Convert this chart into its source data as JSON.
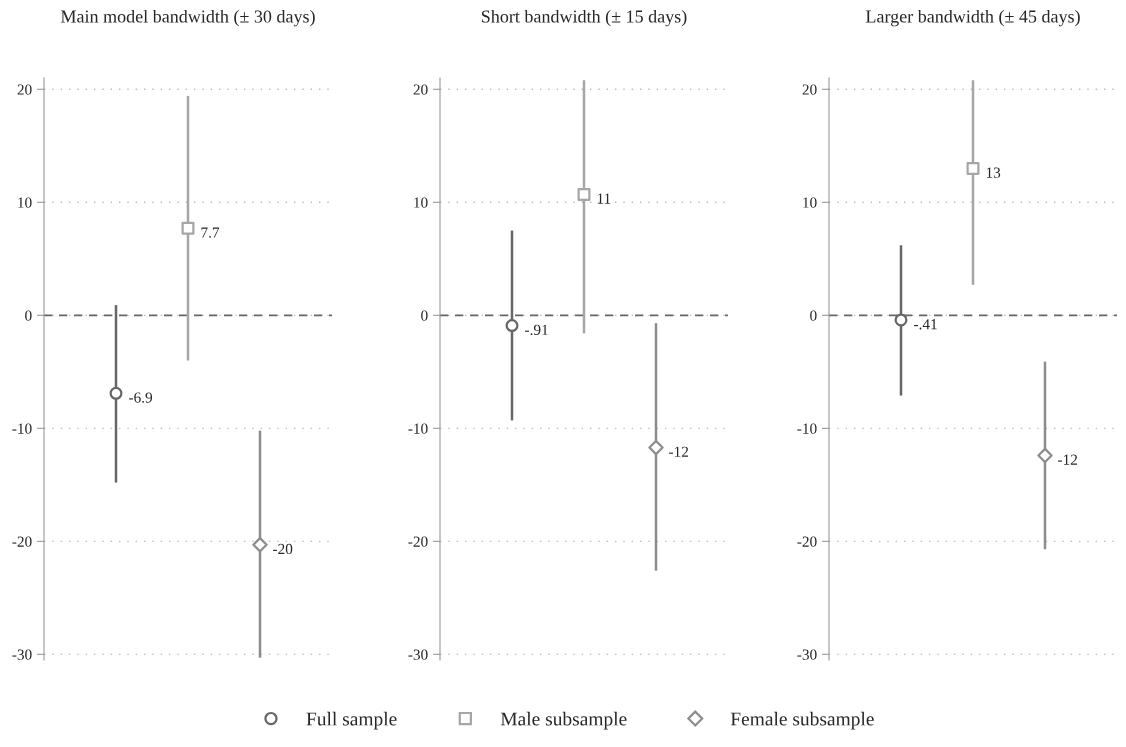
{
  "chart_data": [
    {
      "type": "scatter",
      "title": "Main model bandwidth (± 30 days)",
      "categories": [
        null,
        null,
        null
      ],
      "ylim": [
        -30.5,
        21
      ],
      "yticks": [
        -30,
        -20,
        -10,
        0,
        10,
        20
      ],
      "grid": "y",
      "tick_labels": "y",
      "legend": "bottom",
      "ref_lines": [
        {
          "axis": "y",
          "value": 0,
          "color": "#666666",
          "line_style": "dashed"
        }
      ],
      "series": [
        {
          "name": "Full sample",
          "color": "#666666",
          "marker": "circle",
          "values": [
            -6.9,
            null,
            null
          ],
          "errors": [
            [
              -14.8,
              0.9
            ],
            null,
            null
          ],
          "value_labels": [
            "-6.9",
            null,
            null
          ]
        },
        {
          "name": "Male subsample",
          "color": "#a6a6a6",
          "marker": "square",
          "values": [
            null,
            7.7,
            null
          ],
          "errors": [
            null,
            [
              -4.0,
              19.4
            ],
            null
          ],
          "value_labels": [
            null,
            "7.7",
            null
          ]
        },
        {
          "name": "Female subsample",
          "color": "#8c8c8c",
          "marker": "diamond",
          "values": [
            null,
            null,
            -20.3
          ],
          "errors": [
            null,
            null,
            [
              -30.3,
              -10.2
            ]
          ],
          "value_labels": [
            null,
            null,
            "-20"
          ]
        }
      ]
    },
    {
      "type": "scatter",
      "title": "Short bandwidth (± 15 days)",
      "categories": [
        null,
        null,
        null
      ],
      "ylim": [
        -30.5,
        21
      ],
      "yticks": [
        -30,
        -20,
        -10,
        0,
        10,
        20
      ],
      "grid": "y",
      "tick_labels": "y",
      "ref_lines": [
        {
          "axis": "y",
          "value": 0,
          "color": "#666666",
          "line_style": "dashed"
        }
      ],
      "series": [
        {
          "name": "Full sample",
          "color": "#666666",
          "marker": "circle",
          "values": [
            -0.91,
            null,
            null
          ],
          "errors": [
            [
              -9.3,
              7.5
            ],
            null,
            null
          ],
          "value_labels": [
            "-.91",
            null,
            null
          ]
        },
        {
          "name": "Male subsample",
          "color": "#a6a6a6",
          "marker": "square",
          "values": [
            null,
            10.7,
            null
          ],
          "errors": [
            null,
            [
              -1.6,
              20.8
            ],
            null
          ],
          "value_labels": [
            null,
            "11",
            null
          ]
        },
        {
          "name": "Female subsample",
          "color": "#8c8c8c",
          "marker": "diamond",
          "values": [
            null,
            null,
            -11.7
          ],
          "errors": [
            null,
            null,
            [
              -22.6,
              -0.7
            ]
          ],
          "value_labels": [
            null,
            null,
            "-12"
          ]
        }
      ]
    },
    {
      "type": "scatter",
      "title": "Larger bandwidth (± 45 days)",
      "categories": [
        null,
        null,
        null
      ],
      "ylim": [
        -30.5,
        21
      ],
      "yticks": [
        -30,
        -20,
        -10,
        0,
        10,
        20
      ],
      "grid": "y",
      "tick_labels": "y",
      "ref_lines": [
        {
          "axis": "y",
          "value": 0,
          "color": "#666666",
          "line_style": "dashed"
        }
      ],
      "series": [
        {
          "name": "Full sample",
          "color": "#666666",
          "marker": "circle",
          "values": [
            -0.41,
            null,
            null
          ],
          "errors": [
            [
              -7.1,
              6.2
            ],
            null,
            null
          ],
          "value_labels": [
            "-.41",
            null,
            null
          ]
        },
        {
          "name": "Male subsample",
          "color": "#a6a6a6",
          "marker": "square",
          "values": [
            null,
            13.0,
            null
          ],
          "errors": [
            null,
            [
              2.7,
              20.8
            ],
            null
          ],
          "value_labels": [
            null,
            "13",
            null
          ]
        },
        {
          "name": "Female subsample",
          "color": "#8c8c8c",
          "marker": "diamond",
          "values": [
            null,
            null,
            -12.4
          ],
          "errors": [
            null,
            null,
            [
              -20.7,
              -4.1
            ]
          ],
          "value_labels": [
            null,
            null,
            "-12"
          ]
        }
      ]
    }
  ]
}
